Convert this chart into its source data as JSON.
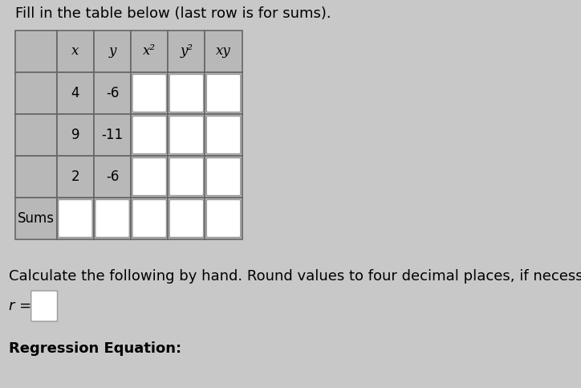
{
  "title": "Fill in the table below (last row is for sums).",
  "bg_color": "#c8c8c8",
  "cell_gray": "#b8b8b8",
  "cell_white": "#ffffff",
  "border_color": "#666666",
  "inner_border": "#999999",
  "headers": [
    "x",
    "y",
    "x²",
    "y²",
    "xy"
  ],
  "x_vals": [
    "4",
    "9",
    "2"
  ],
  "y_vals": [
    "-6",
    "-11",
    "-6"
  ],
  "sums_label": "Sums",
  "calc_text": "Calculate the following by hand. Round values to four decimal places, if necessar",
  "r_label": "r =",
  "reg_label": "Regression Equation:",
  "font_size_title": 13,
  "font_size_body": 13,
  "font_size_table": 12
}
